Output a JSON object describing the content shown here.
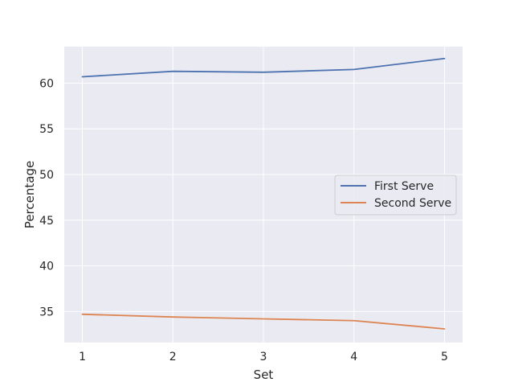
{
  "chart_data": {
    "type": "line",
    "title": "",
    "xlabel": "Set",
    "ylabel": "Percentage",
    "x": [
      1,
      2,
      3,
      4,
      5
    ],
    "xlim": [
      0.8,
      5.2
    ],
    "ylim": [
      31.6,
      64.0
    ],
    "xticks": [
      "1",
      "2",
      "3",
      "4",
      "5"
    ],
    "yticks": [
      35,
      40,
      45,
      50,
      55,
      60
    ],
    "grid": true,
    "legend_position": "center-right",
    "series": [
      {
        "name": "First Serve",
        "color": "#4c72b0",
        "values": [
          60.7,
          61.3,
          61.2,
          61.5,
          62.7
        ]
      },
      {
        "name": "Second Serve",
        "color": "#dd8452",
        "values": [
          34.7,
          34.4,
          34.2,
          34.0,
          33.1
        ]
      }
    ]
  }
}
